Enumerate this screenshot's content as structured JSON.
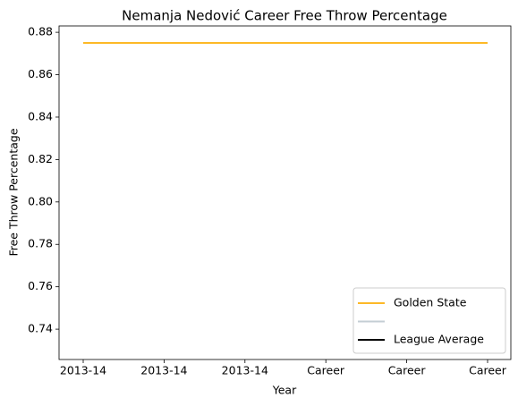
{
  "chart_data": {
    "type": "line",
    "title": "Nemanja Nedović Career Free Throw Percentage",
    "x_label": "Year",
    "y_label": "Free Throw Percentage",
    "categories": [
      "2013-14",
      "2013-14",
      "2013-14",
      "Career",
      "Career",
      "Career"
    ],
    "series": [
      {
        "name": "Golden State",
        "color": "#FDB927",
        "values": [
          0.875,
          0.875,
          0.875,
          0.875,
          0.875,
          0.875
        ]
      },
      {
        "color": "#C4CED4",
        "values": [
          null,
          null,
          null,
          null,
          null,
          null
        ]
      },
      {
        "name": "League Average",
        "color": "#000000",
        "values": [
          null,
          null,
          null,
          null,
          null,
          null
        ]
      }
    ],
    "ylim": [
      0.7257,
      0.883
    ],
    "yticks": [
      0.74,
      0.76,
      0.78,
      {
        "value": 0.8,
        "label": "0.80"
      },
      0.82,
      0.84,
      0.86,
      0.88
    ],
    "legend": "lower right",
    "grid": false
  }
}
